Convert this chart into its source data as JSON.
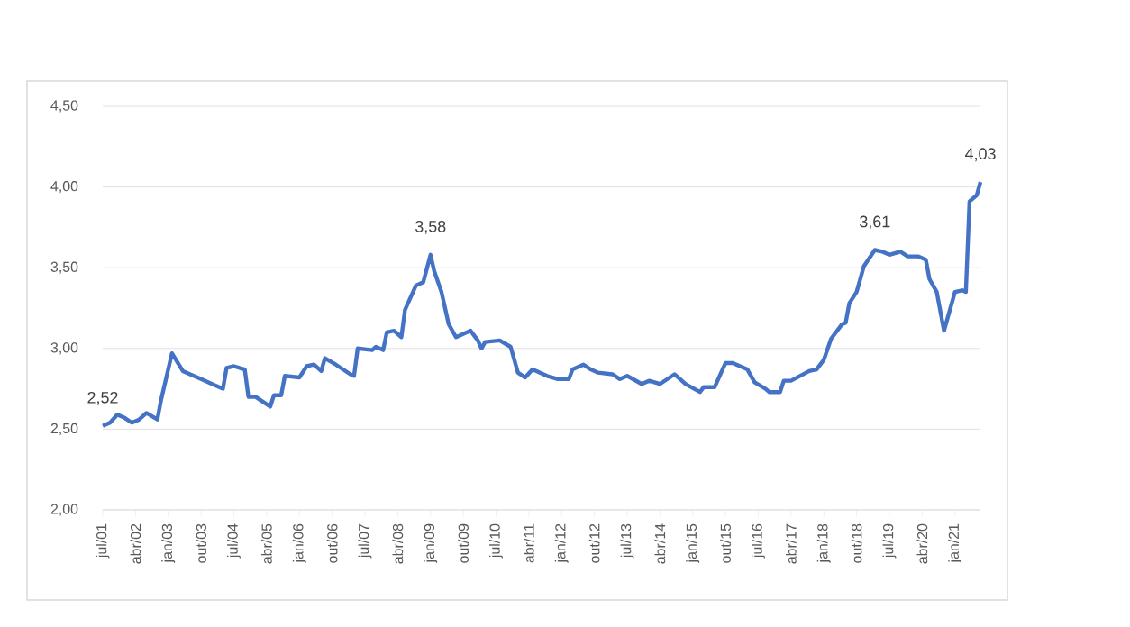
{
  "chart_data": {
    "type": "line",
    "x": [
      "2001-07",
      "2001-09",
      "2001-11",
      "2002-01",
      "2002-03",
      "2002-05",
      "2002-07",
      "2002-10",
      "2002-11",
      "2003-02",
      "2003-05",
      "2003-07",
      "2003-10",
      "2004-01",
      "2004-04",
      "2004-05",
      "2004-07",
      "2004-10",
      "2004-11",
      "2005-01",
      "2005-05",
      "2005-06",
      "2005-08",
      "2005-09",
      "2006-01",
      "2006-03",
      "2006-05",
      "2006-07",
      "2006-08",
      "2006-11",
      "2007-03",
      "2007-04",
      "2007-05",
      "2007-09",
      "2007-10",
      "2007-12",
      "2008-01",
      "2008-03",
      "2008-05",
      "2008-06",
      "2008-09",
      "2008-11",
      "2009-01",
      "2009-02",
      "2009-04",
      "2009-06",
      "2009-08",
      "2009-09",
      "2009-12",
      "2010-02",
      "2010-03",
      "2010-04",
      "2010-08",
      "2010-11",
      "2011-01",
      "2011-03",
      "2011-05",
      "2011-09",
      "2011-12",
      "2012-03",
      "2012-04",
      "2012-07",
      "2012-09",
      "2012-11",
      "2013-03",
      "2013-05",
      "2013-07",
      "2013-11",
      "2014-01",
      "2014-04",
      "2014-08",
      "2014-11",
      "2015-03",
      "2015-04",
      "2015-07",
      "2015-10",
      "2015-12",
      "2016-04",
      "2016-06",
      "2016-09",
      "2016-10",
      "2017-01",
      "2017-02",
      "2017-04",
      "2017-09",
      "2017-11",
      "2018-01",
      "2018-03",
      "2018-06",
      "2018-07",
      "2018-08",
      "2018-10",
      "2018-12",
      "2019-03",
      "2019-05",
      "2019-07",
      "2019-10",
      "2019-12",
      "2020-03",
      "2020-05",
      "2020-06",
      "2020-08",
      "2020-10",
      "2021-01",
      "2021-03",
      "2021-04",
      "2021-05",
      "2021-07",
      "2021-08"
    ],
    "series": [
      {
        "color": "#4472c4",
        "values": [
          2.52,
          2.54,
          2.59,
          2.57,
          2.54,
          2.56,
          2.6,
          2.56,
          2.68,
          2.97,
          2.86,
          2.84,
          2.81,
          2.78,
          2.75,
          2.88,
          2.89,
          2.87,
          2.7,
          2.7,
          2.64,
          2.71,
          2.71,
          2.83,
          2.82,
          2.89,
          2.9,
          2.86,
          2.94,
          2.9,
          2.84,
          2.83,
          3.0,
          2.99,
          3.01,
          2.99,
          3.1,
          3.11,
          3.07,
          3.24,
          3.39,
          3.41,
          3.58,
          3.48,
          3.35,
          3.15,
          3.07,
          3.08,
          3.11,
          3.05,
          3.0,
          3.04,
          3.05,
          3.01,
          2.85,
          2.82,
          2.87,
          2.83,
          2.81,
          2.81,
          2.87,
          2.9,
          2.87,
          2.85,
          2.84,
          2.81,
          2.83,
          2.78,
          2.8,
          2.78,
          2.84,
          2.78,
          2.73,
          2.76,
          2.76,
          2.91,
          2.91,
          2.87,
          2.79,
          2.75,
          2.73,
          2.73,
          2.8,
          2.8,
          2.86,
          2.87,
          2.93,
          3.06,
          3.15,
          3.16,
          3.28,
          3.35,
          3.51,
          3.61,
          3.6,
          3.58,
          3.6,
          3.57,
          3.57,
          3.55,
          3.43,
          3.35,
          3.11,
          3.35,
          3.36,
          3.35,
          3.91,
          3.95,
          4.03
        ]
      }
    ],
    "xlim": [
      "2001-07",
      "2021-08"
    ],
    "xticks": [
      {
        "value": "2001-07",
        "label": "jul/01"
      },
      {
        "value": "2002-04",
        "label": "abr/02"
      },
      {
        "value": "2003-01",
        "label": "jan/03"
      },
      {
        "value": "2003-10",
        "label": "out/03"
      },
      {
        "value": "2004-07",
        "label": "jul/04"
      },
      {
        "value": "2005-04",
        "label": "abr/05"
      },
      {
        "value": "2006-01",
        "label": "jan/06"
      },
      {
        "value": "2006-10",
        "label": "out/06"
      },
      {
        "value": "2007-07",
        "label": "jul/07"
      },
      {
        "value": "2008-04",
        "label": "abr/08"
      },
      {
        "value": "2009-01",
        "label": "jan/09"
      },
      {
        "value": "2009-10",
        "label": "out/09"
      },
      {
        "value": "2010-07",
        "label": "jul/10"
      },
      {
        "value": "2011-04",
        "label": "abr/11"
      },
      {
        "value": "2012-01",
        "label": "jan/12"
      },
      {
        "value": "2012-10",
        "label": "out/12"
      },
      {
        "value": "2013-07",
        "label": "jul/13"
      },
      {
        "value": "2014-04",
        "label": "abr/14"
      },
      {
        "value": "2015-01",
        "label": "jan/15"
      },
      {
        "value": "2015-10",
        "label": "out/15"
      },
      {
        "value": "2016-07",
        "label": "jul/16"
      },
      {
        "value": "2017-04",
        "label": "abr/17"
      },
      {
        "value": "2018-01",
        "label": "jan/18"
      },
      {
        "value": "2018-10",
        "label": "out/18"
      },
      {
        "value": "2019-07",
        "label": "jul/19"
      },
      {
        "value": "2020-04",
        "label": "abr/20"
      },
      {
        "value": "2021-01",
        "label": "jan/21"
      }
    ],
    "ylim": [
      2,
      4.5
    ],
    "yticks": [
      {
        "value": 2,
        "label": "2,00"
      },
      {
        "value": 2.5,
        "label": "2,50"
      },
      {
        "value": 3,
        "label": "3,00"
      },
      {
        "value": 3.5,
        "label": "3,50"
      },
      {
        "value": 4,
        "label": "4,00"
      },
      {
        "value": 4.5,
        "label": "4,50"
      }
    ],
    "grid": "y",
    "line_style": "solid",
    "marker": "none",
    "annotations": [
      {
        "text": "2,52",
        "x": "2001-07",
        "y": 2.52
      },
      {
        "text": "3,58",
        "x": "2009-01",
        "y": 3.58
      },
      {
        "text": "3,61",
        "x": "2019-03",
        "y": 3.61
      },
      {
        "text": "4,03",
        "x": "2021-08",
        "y": 4.03
      }
    ]
  }
}
